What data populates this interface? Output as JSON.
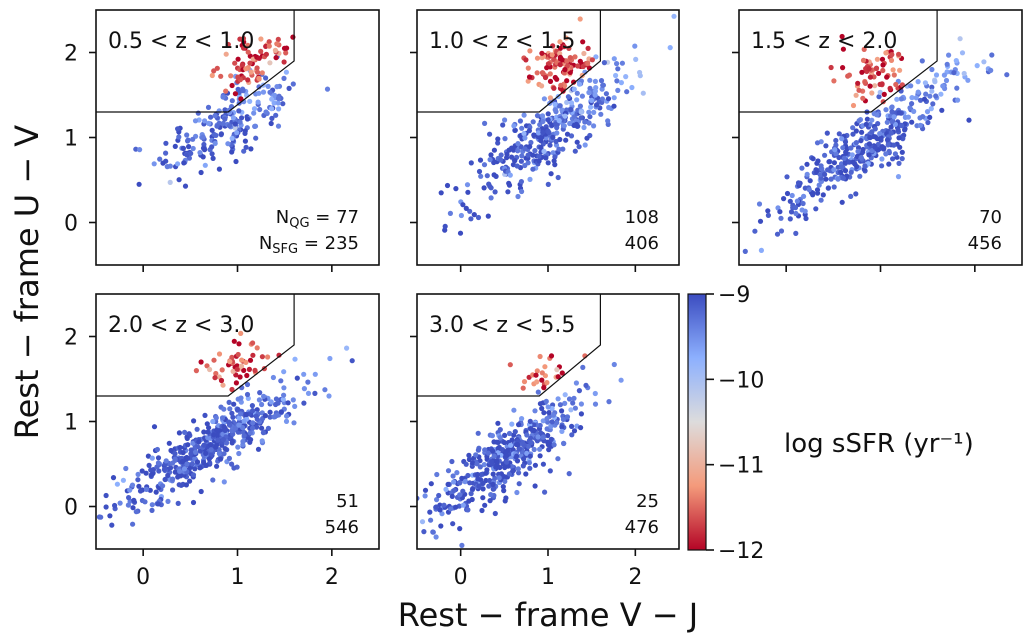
{
  "chart_data": {
    "type": "scatter",
    "xlabel": "Rest − frame V − J",
    "ylabel": "Rest − frame U − V",
    "xlim": [
      -0.5,
      2.5
    ],
    "ylim": [
      -0.5,
      2.5
    ],
    "xticks": [
      "0",
      "1",
      "2"
    ],
    "yticks": [
      "0",
      "1",
      "2"
    ],
    "qg_selection_boundary": {
      "x": [
        -0.5,
        0.9,
        1.6,
        1.6
      ],
      "y": [
        1.3,
        1.3,
        1.9,
        2.5
      ]
    },
    "colorbar": {
      "label": "log sSFR (yr⁻¹)",
      "range": [
        -12,
        -9
      ],
      "ticks": [
        "−9",
        "−10",
        "−11",
        "−12"
      ],
      "colors": [
        "#3b4cc0",
        "#8db0fe",
        "#dddcdc",
        "#f49a7b",
        "#b40426"
      ]
    },
    "count_labels": {
      "qg": "N",
      "qg_sub": "QG",
      "sfg": "N",
      "sfg_sub": "SFG"
    },
    "panels": [
      {
        "label": "0.5 < z < 1.0",
        "n_qg": "77",
        "n_sfg": "235",
        "show_names": true,
        "cloud": {
          "x0": 0.9,
          "y0": 1.15,
          "sx": 0.38,
          "sy": 0.22,
          "slope": 0.55
        },
        "quiescent_center": [
          1.2,
          1.85
        ]
      },
      {
        "label": "1.0 < z < 1.5",
        "n_qg": "108",
        "n_sfg": "406",
        "show_names": false,
        "cloud": {
          "x0": 1.0,
          "y0": 1.05,
          "sx": 0.48,
          "sy": 0.22,
          "slope": 0.75
        },
        "quiescent_center": [
          1.2,
          1.85
        ]
      },
      {
        "label": "1.5 < z < 2.0",
        "n_qg": "70",
        "n_sfg": "456",
        "show_names": false,
        "cloud": {
          "x0": 0.9,
          "y0": 0.95,
          "sx": 0.5,
          "sy": 0.2,
          "slope": 0.8
        },
        "quiescent_center": [
          1.0,
          1.7
        ]
      },
      {
        "label": "2.0 < z < 3.0",
        "n_qg": "51",
        "n_sfg": "546",
        "show_names": false,
        "cloud": {
          "x0": 0.7,
          "y0": 0.7,
          "sx": 0.5,
          "sy": 0.17,
          "slope": 0.65
        },
        "quiescent_center": [
          1.0,
          1.6
        ]
      },
      {
        "label": "3.0 < z < 5.5",
        "n_qg": "25",
        "n_sfg": "476",
        "show_names": false,
        "cloud": {
          "x0": 0.5,
          "y0": 0.55,
          "sx": 0.45,
          "sy": 0.2,
          "slope": 0.7
        },
        "quiescent_center": [
          1.0,
          1.5
        ]
      }
    ]
  }
}
